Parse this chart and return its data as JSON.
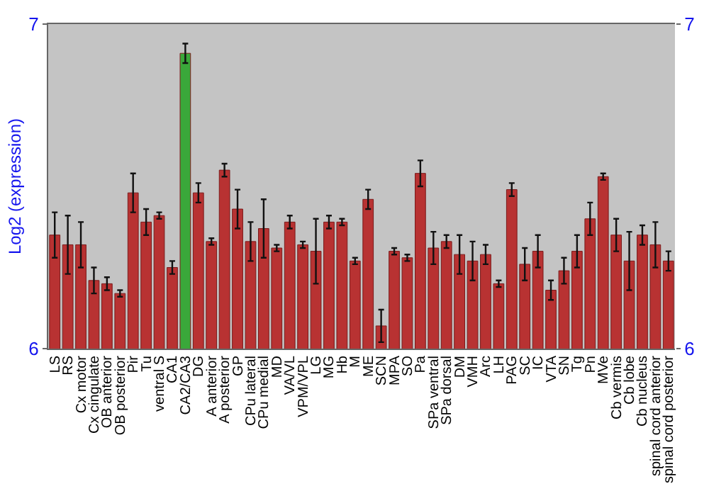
{
  "chart_data": {
    "type": "bar",
    "ylabel": "Log2 (expression)",
    "categories": [
      "LS",
      "RS",
      "Cx motor",
      "Cx cingulate",
      "OB anterior",
      "OB posterior",
      "Pir",
      "Tu",
      "ventral S",
      "CA1",
      "CA2/CA3",
      "DG",
      "A anterior",
      "A posterior",
      "GP",
      "CPu lateral",
      "CPu medial",
      "MD",
      "VA/VL",
      "VPM/VPL",
      "LG",
      "MG",
      "Hb",
      "M",
      "ME",
      "SCN",
      "MPA",
      "SO",
      "Pa",
      "SPa ventral",
      "SPa dorsal",
      "DM",
      "VMH",
      "Arc",
      "LH",
      "PAG",
      "SC",
      "IC",
      "VTA",
      "SN",
      "Tg",
      "Pn",
      "MVe",
      "Cb vermis",
      "Cb lobe",
      "Cb nucleus",
      "spinal cord anterior",
      "spinal cord posterior"
    ],
    "values": [
      6.35,
      6.32,
      6.32,
      6.21,
      6.2,
      6.17,
      6.48,
      6.39,
      6.41,
      6.25,
      6.91,
      6.48,
      6.33,
      6.55,
      6.43,
      6.33,
      6.37,
      6.31,
      6.39,
      6.32,
      6.3,
      6.39,
      6.39,
      6.27,
      6.46,
      6.07,
      6.3,
      6.28,
      6.54,
      6.31,
      6.33,
      6.29,
      6.27,
      6.29,
      6.2,
      6.49,
      6.26,
      6.3,
      6.18,
      6.24,
      6.3,
      6.4,
      6.53,
      6.35,
      6.27,
      6.35,
      6.32,
      6.27
    ],
    "errors": [
      0.07,
      0.09,
      0.07,
      0.04,
      0.02,
      0.01,
      0.06,
      0.04,
      0.01,
      0.02,
      0.03,
      0.03,
      0.01,
      0.02,
      0.06,
      0.06,
      0.09,
      0.01,
      0.02,
      0.01,
      0.1,
      0.02,
      0.01,
      0.01,
      0.03,
      0.05,
      0.01,
      0.01,
      0.04,
      0.05,
      0.02,
      0.06,
      0.06,
      0.03,
      0.01,
      0.02,
      0.05,
      0.05,
      0.03,
      0.04,
      0.05,
      0.05,
      0.01,
      0.05,
      0.09,
      0.03,
      0.07,
      0.03
    ],
    "colors": [
      "#b83232",
      "#b83232",
      "#b83232",
      "#b83232",
      "#b83232",
      "#b83232",
      "#b83232",
      "#b83232",
      "#b83232",
      "#b83232",
      "#3aa83a",
      "#b83232",
      "#b83232",
      "#b83232",
      "#b83232",
      "#b83232",
      "#b83232",
      "#b83232",
      "#b83232",
      "#b83232",
      "#b83232",
      "#b83232",
      "#b83232",
      "#b83232",
      "#b83232",
      "#b83232",
      "#b83232",
      "#b83232",
      "#b83232",
      "#b83232",
      "#b83232",
      "#b83232",
      "#b83232",
      "#b83232",
      "#b83232",
      "#b83232",
      "#b83232",
      "#b83232",
      "#b83232",
      "#b83232",
      "#b83232",
      "#b83232",
      "#b83232",
      "#b83232",
      "#b83232",
      "#b83232",
      "#b83232",
      "#b83232"
    ],
    "ylim": [
      6,
      7
    ],
    "yticks": [
      6,
      7
    ],
    "y2lim": [
      6,
      7
    ],
    "y2ticks": [
      6,
      7
    ]
  }
}
